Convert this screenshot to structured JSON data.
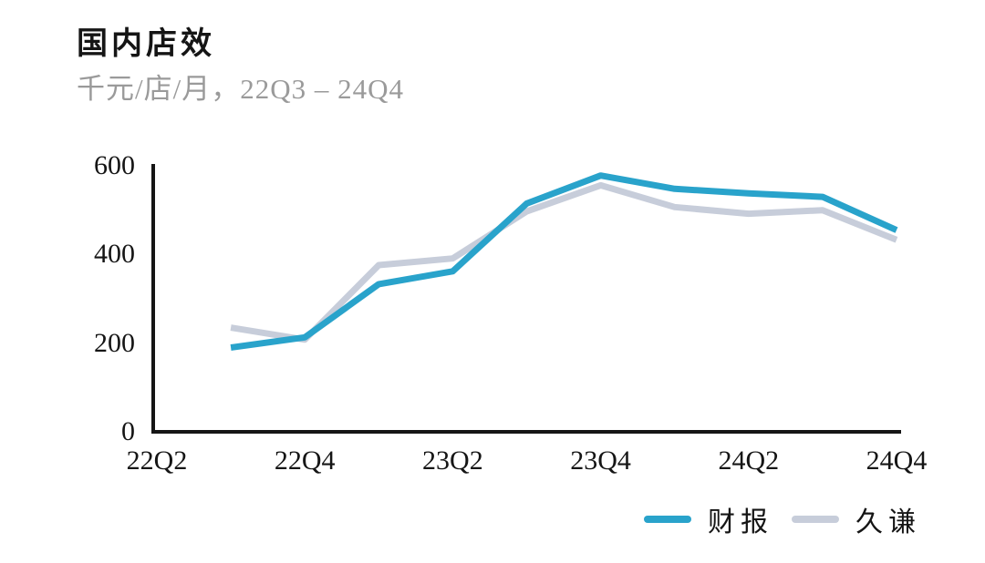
{
  "header": {
    "title": "国内店效",
    "subtitle": "千元/店/月，22Q3 – 24Q4"
  },
  "chart_data": {
    "type": "line",
    "title": "国内店效",
    "ylabel": "千元/店/月",
    "period_note": "22Q3 – 24Q4",
    "x": [
      "22Q3",
      "22Q4",
      "23Q1",
      "23Q2",
      "23Q3",
      "23Q4",
      "24Q1",
      "24Q2",
      "24Q3",
      "24Q4"
    ],
    "series": [
      {
        "name": "财报",
        "color": "#29a3cb",
        "values": [
          190,
          213,
          333,
          362,
          515,
          578,
          548,
          538,
          530,
          455
        ]
      },
      {
        "name": "久谦",
        "color": "#c7cdda",
        "values": [
          235,
          208,
          376,
          391,
          497,
          556,
          507,
          492,
          500,
          433
        ]
      }
    ],
    "xticks": [
      "22Q2",
      "22Q4",
      "23Q2",
      "23Q4",
      "24Q2",
      "24Q4"
    ],
    "yticks": [
      600,
      400,
      200,
      0
    ],
    "ylim": [
      0,
      600
    ],
    "x_domain_start": "22Q2",
    "x_domain_end": "24Q4",
    "grid": false,
    "legend_position": "bottom-right",
    "axis_color": "#151515"
  },
  "legend": {
    "items": [
      {
        "label": "财报",
        "color": "#29a3cb"
      },
      {
        "label": "久谦",
        "color": "#c7cdda"
      }
    ]
  }
}
